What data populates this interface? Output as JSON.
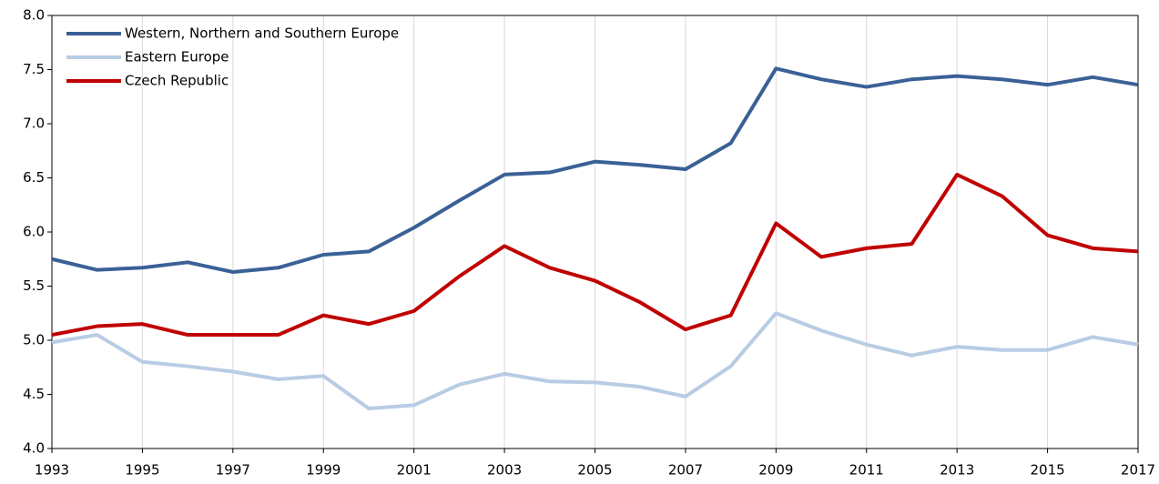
{
  "chart_data": {
    "type": "line",
    "x": [
      1993,
      1994,
      1995,
      1996,
      1997,
      1998,
      1999,
      2000,
      2001,
      2002,
      2003,
      2004,
      2005,
      2006,
      2007,
      2008,
      2009,
      2010,
      2011,
      2012,
      2013,
      2014,
      2015,
      2016,
      2017
    ],
    "series": [
      {
        "name": "Western, Northern and Southern Europe",
        "color": "#3a6196",
        "values": [
          5.75,
          5.65,
          5.67,
          5.72,
          5.63,
          5.67,
          5.79,
          5.82,
          6.04,
          6.29,
          6.53,
          6.55,
          6.65,
          6.62,
          6.58,
          6.82,
          7.51,
          7.41,
          7.34,
          7.41,
          7.44,
          7.41,
          7.36,
          7.43,
          7.36
        ]
      },
      {
        "name": "Eastern Europe",
        "color": "#b8cce4",
        "values": [
          4.98,
          5.05,
          4.8,
          4.76,
          4.71,
          4.64,
          4.67,
          4.37,
          4.4,
          4.59,
          4.69,
          4.62,
          4.61,
          4.57,
          4.48,
          4.76,
          5.25,
          5.09,
          4.96,
          4.86,
          4.94,
          4.91,
          4.91,
          5.03,
          4.96
        ]
      },
      {
        "name": "Czech Republic",
        "color": "#c00000",
        "values": [
          5.05,
          5.13,
          5.15,
          5.05,
          5.05,
          5.05,
          5.23,
          5.15,
          5.27,
          5.59,
          5.87,
          5.67,
          5.55,
          5.35,
          5.1,
          5.23,
          6.08,
          5.77,
          5.85,
          5.89,
          6.53,
          6.33,
          5.97,
          5.85,
          5.82
        ]
      }
    ],
    "xlim": [
      1993,
      2017
    ],
    "xticks": [
      1993,
      1995,
      1997,
      1999,
      2001,
      2003,
      2005,
      2007,
      2009,
      2011,
      2013,
      2015,
      2017
    ],
    "ylim": [
      4,
      8
    ],
    "yticks": [
      {
        "value": 4,
        "label": "4.0"
      },
      4.5,
      {
        "value": 5,
        "label": "5.0"
      },
      5.5,
      {
        "value": 6,
        "label": "6.0"
      },
      6.5,
      {
        "value": 7,
        "label": "7.0"
      },
      7.5,
      {
        "value": 8,
        "label": "8.0"
      }
    ],
    "grid": "x",
    "legend": "upper-left"
  }
}
